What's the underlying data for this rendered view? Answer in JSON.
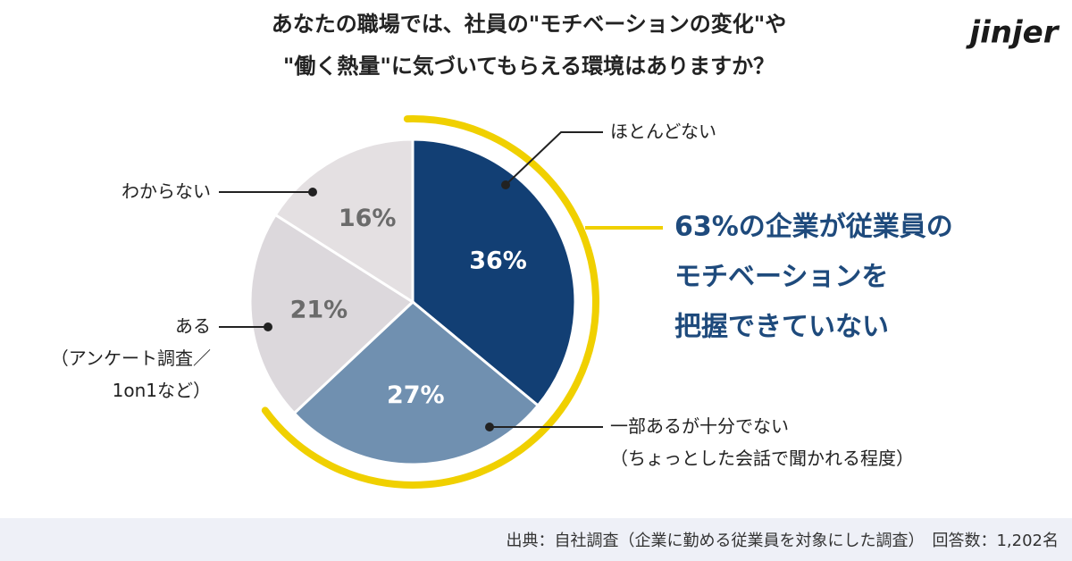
{
  "header": {
    "logo": "jinjer"
  },
  "chart_data": {
    "type": "pie",
    "title": [
      "あなたの職場では、社員の\"モチベーションの変化\"や",
      "\"働く熱量\"に気づいてもらえる環境はありますか？"
    ],
    "categories": [
      "ほとんどない",
      "一部あるが十分でない\n（ちょっとした会話で聞かれる程度）",
      "ある\n（アンケート調査／\n1on1など）",
      "わからない"
    ],
    "values": [
      36,
      27,
      21,
      16
    ],
    "value_labels": [
      "36%",
      "27%",
      "21%",
      "16%"
    ],
    "colors": [
      "#123f74",
      "#7090b0",
      "#dcd8dc",
      "#e4e0e2"
    ],
    "label_colors": [
      "#ffffff",
      "#ffffff",
      "#6b6b6b",
      "#6b6b6b"
    ],
    "annotation": [
      "63%の企業が従業員の",
      "モチベーションを",
      "把握できていない"
    ],
    "highlight_color": "#f0d000"
  },
  "footer": {
    "source": "出典：自社調査（企業に勤める従業員を対象にした調査）　回答数：1,202名"
  }
}
